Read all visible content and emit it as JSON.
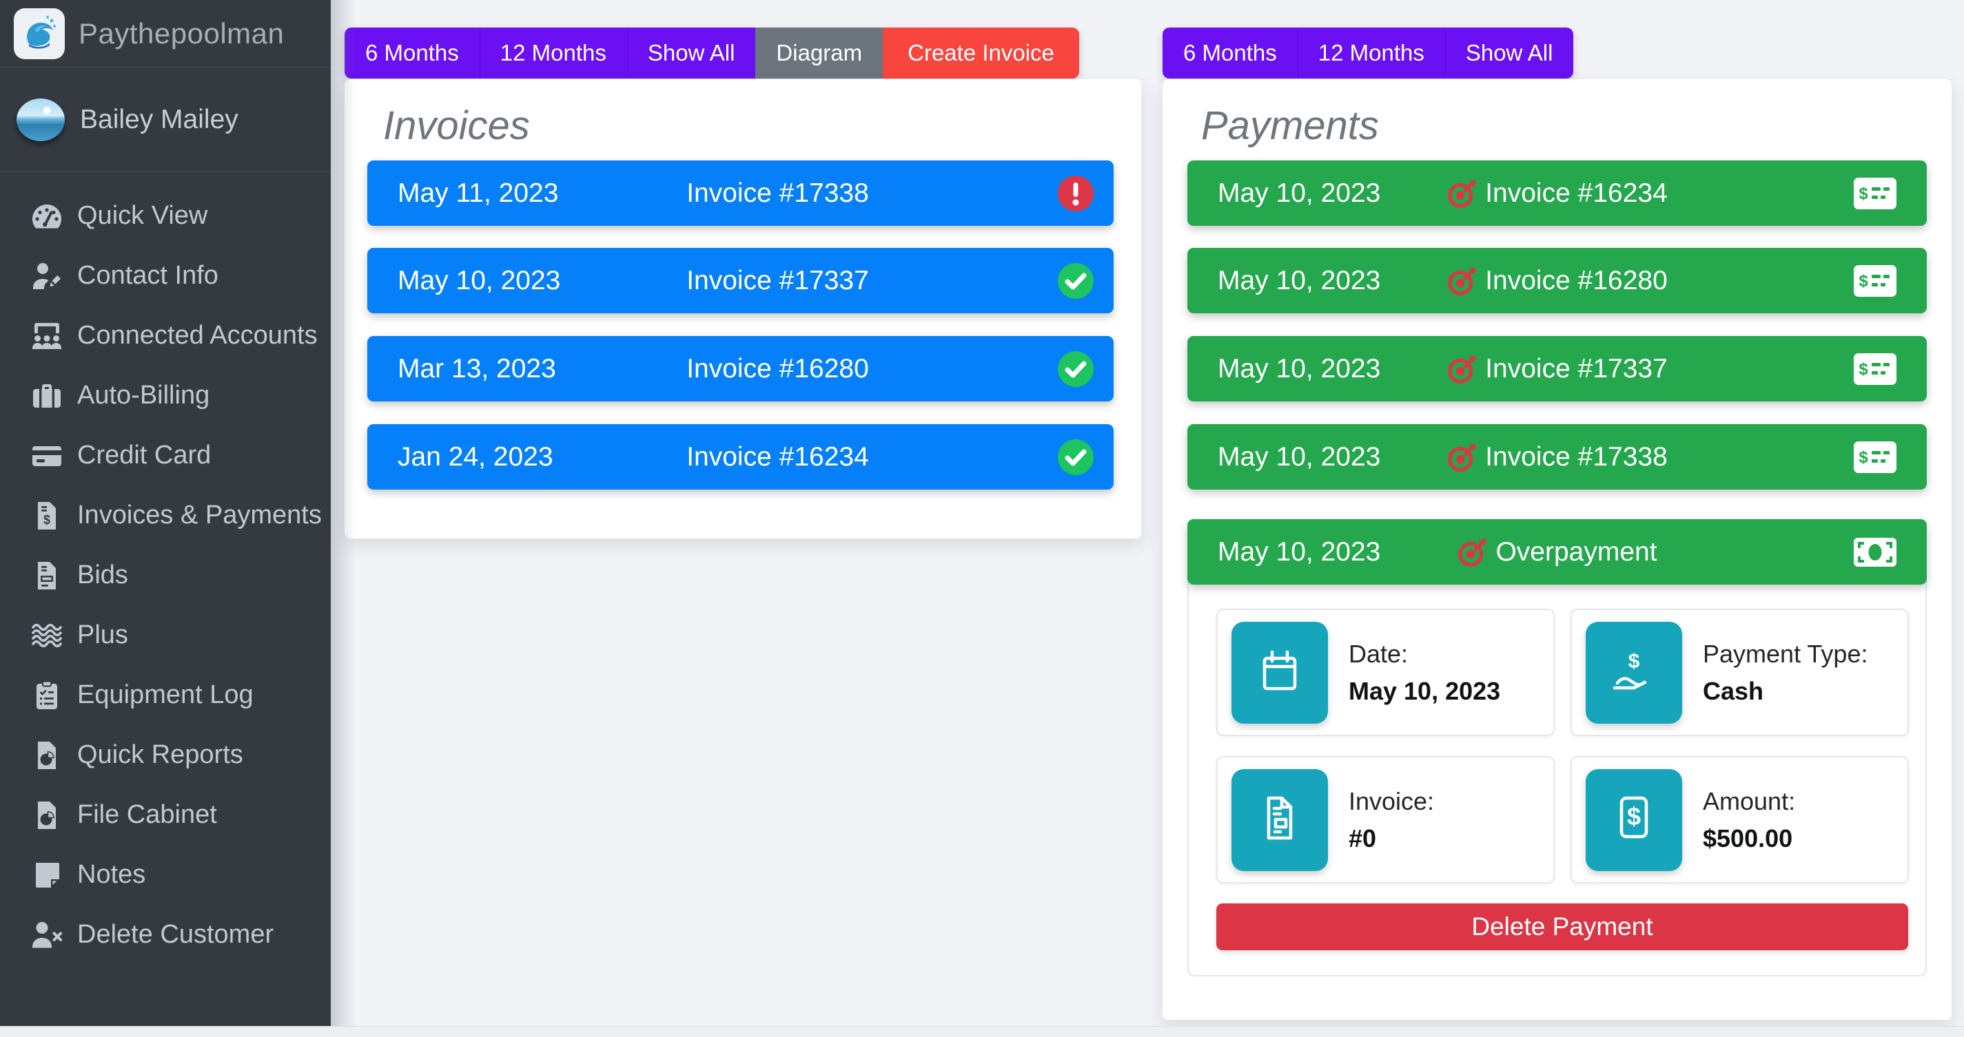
{
  "sidebar": {
    "brand": "Paythepoolman",
    "user": "Bailey Mailey",
    "items": [
      {
        "label": "Quick View",
        "icon": "tachometer-icon"
      },
      {
        "label": "Contact Info",
        "icon": "user-edit-icon"
      },
      {
        "label": "Connected Accounts",
        "icon": "users-class-icon"
      },
      {
        "label": "Auto-Billing",
        "icon": "briefcase-icon"
      },
      {
        "label": "Credit Card",
        "icon": "credit-card-icon"
      },
      {
        "label": "Invoices & Payments",
        "icon": "file-invoice-dollar-icon"
      },
      {
        "label": "Bids",
        "icon": "file-invoice-icon"
      },
      {
        "label": "Plus",
        "icon": "water-icon"
      },
      {
        "label": "Equipment Log",
        "icon": "clipboard-list-icon"
      },
      {
        "label": "Quick Reports",
        "icon": "file-chart-pie-icon"
      },
      {
        "label": "File Cabinet",
        "icon": "file-chart-pie-icon"
      },
      {
        "label": "Notes",
        "icon": "sticky-note-icon"
      },
      {
        "label": "Delete Customer",
        "icon": "user-times-icon"
      }
    ]
  },
  "invoices": {
    "title": "Invoices",
    "toolbar": [
      {
        "label": "6 Months",
        "style": "purple"
      },
      {
        "label": "12 Months",
        "style": "purple"
      },
      {
        "label": "Show All",
        "style": "purple"
      },
      {
        "label": "Diagram",
        "style": "gray"
      },
      {
        "label": "Create Invoice",
        "style": "red"
      }
    ],
    "rows": [
      {
        "date": "May 11, 2023",
        "label": "Invoice #17338",
        "status": "overdue",
        "status_icon": "exclamation-circle-icon"
      },
      {
        "date": "May 10, 2023",
        "label": "Invoice #17337",
        "status": "paid",
        "status_icon": "check-circle-icon"
      },
      {
        "date": "Mar 13, 2023",
        "label": "Invoice #16280",
        "status": "paid",
        "status_icon": "check-circle-icon"
      },
      {
        "date": "Jan 24, 2023",
        "label": "Invoice #16234",
        "status": "paid",
        "status_icon": "check-circle-icon"
      }
    ]
  },
  "payments": {
    "title": "Payments",
    "toolbar": [
      {
        "label": "6 Months",
        "style": "purple"
      },
      {
        "label": "12 Months",
        "style": "purple"
      },
      {
        "label": "Show All",
        "style": "purple"
      }
    ],
    "rows": [
      {
        "date": "May 10, 2023",
        "label": "Invoice #16234",
        "marker_icon": "bullseye-arrow-icon",
        "type_icon": "money-check-icon"
      },
      {
        "date": "May 10, 2023",
        "label": "Invoice #16280",
        "marker_icon": "bullseye-arrow-icon",
        "type_icon": "money-check-icon"
      },
      {
        "date": "May 10, 2023",
        "label": "Invoice #17337",
        "marker_icon": "bullseye-arrow-icon",
        "type_icon": "money-check-icon"
      },
      {
        "date": "May 10, 2023",
        "label": "Invoice #17338",
        "marker_icon": "bullseye-arrow-icon",
        "type_icon": "money-check-icon"
      },
      {
        "date": "May 10, 2023",
        "label": "Overpayment",
        "marker_icon": "bullseye-arrow-icon",
        "type_icon": "money-bill-icon",
        "expanded": true
      }
    ],
    "detail": {
      "cards": [
        {
          "label": "Date:",
          "value": "May 10, 2023",
          "icon": "calendar-icon"
        },
        {
          "label": "Payment Type:",
          "value": "Cash",
          "icon": "hand-holding-dollar-icon"
        },
        {
          "label": "Invoice:",
          "value": "#0",
          "icon": "file-invoice-detail-icon"
        },
        {
          "label": "Amount:",
          "value": "$500.00",
          "icon": "dollar-document-icon"
        }
      ],
      "delete_label": "Delete Payment"
    }
  },
  "colors": {
    "sidebar_bg": "#343a40",
    "purple": "#6a10f2",
    "gray": "#6c757d",
    "red_bright": "#f8463f",
    "crimson": "#dc3545",
    "blue": "#0680f8",
    "green": "#24a74d",
    "check_green": "#1dc45f",
    "teal": "#17a5bc",
    "page_bg": "#f1f3f7"
  }
}
